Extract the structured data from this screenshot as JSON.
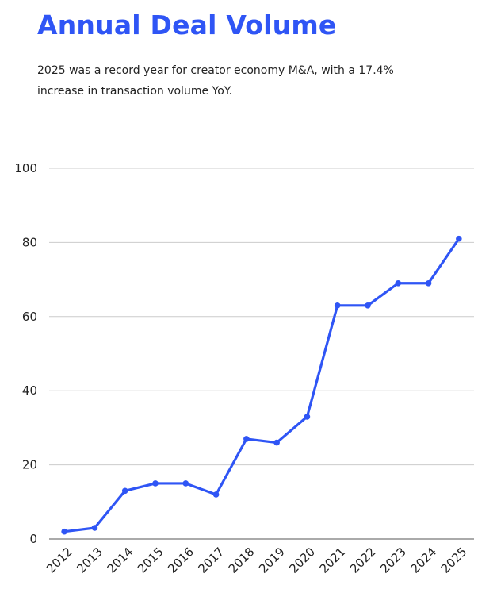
{
  "chart_data": {
    "type": "line",
    "title": "Annual Deal Volume",
    "subtitle": "2025 was a record year for creator economy M&A, with a 17.4% increase in transaction volume YoY.",
    "xlabel": "",
    "ylabel": "",
    "categories": [
      "2012",
      "2013",
      "2014",
      "2015",
      "2016",
      "2017",
      "2018",
      "2019",
      "2020",
      "2021",
      "2022",
      "2023",
      "2024",
      "2025"
    ],
    "values": [
      2,
      3,
      13,
      15,
      15,
      12,
      27,
      26,
      33,
      63,
      63,
      69,
      69,
      81
    ],
    "ylim": [
      0,
      100
    ],
    "yticks": [
      0,
      20,
      40,
      60,
      80,
      100
    ],
    "grid": true,
    "legend": "none",
    "color": "#2f55f5"
  }
}
